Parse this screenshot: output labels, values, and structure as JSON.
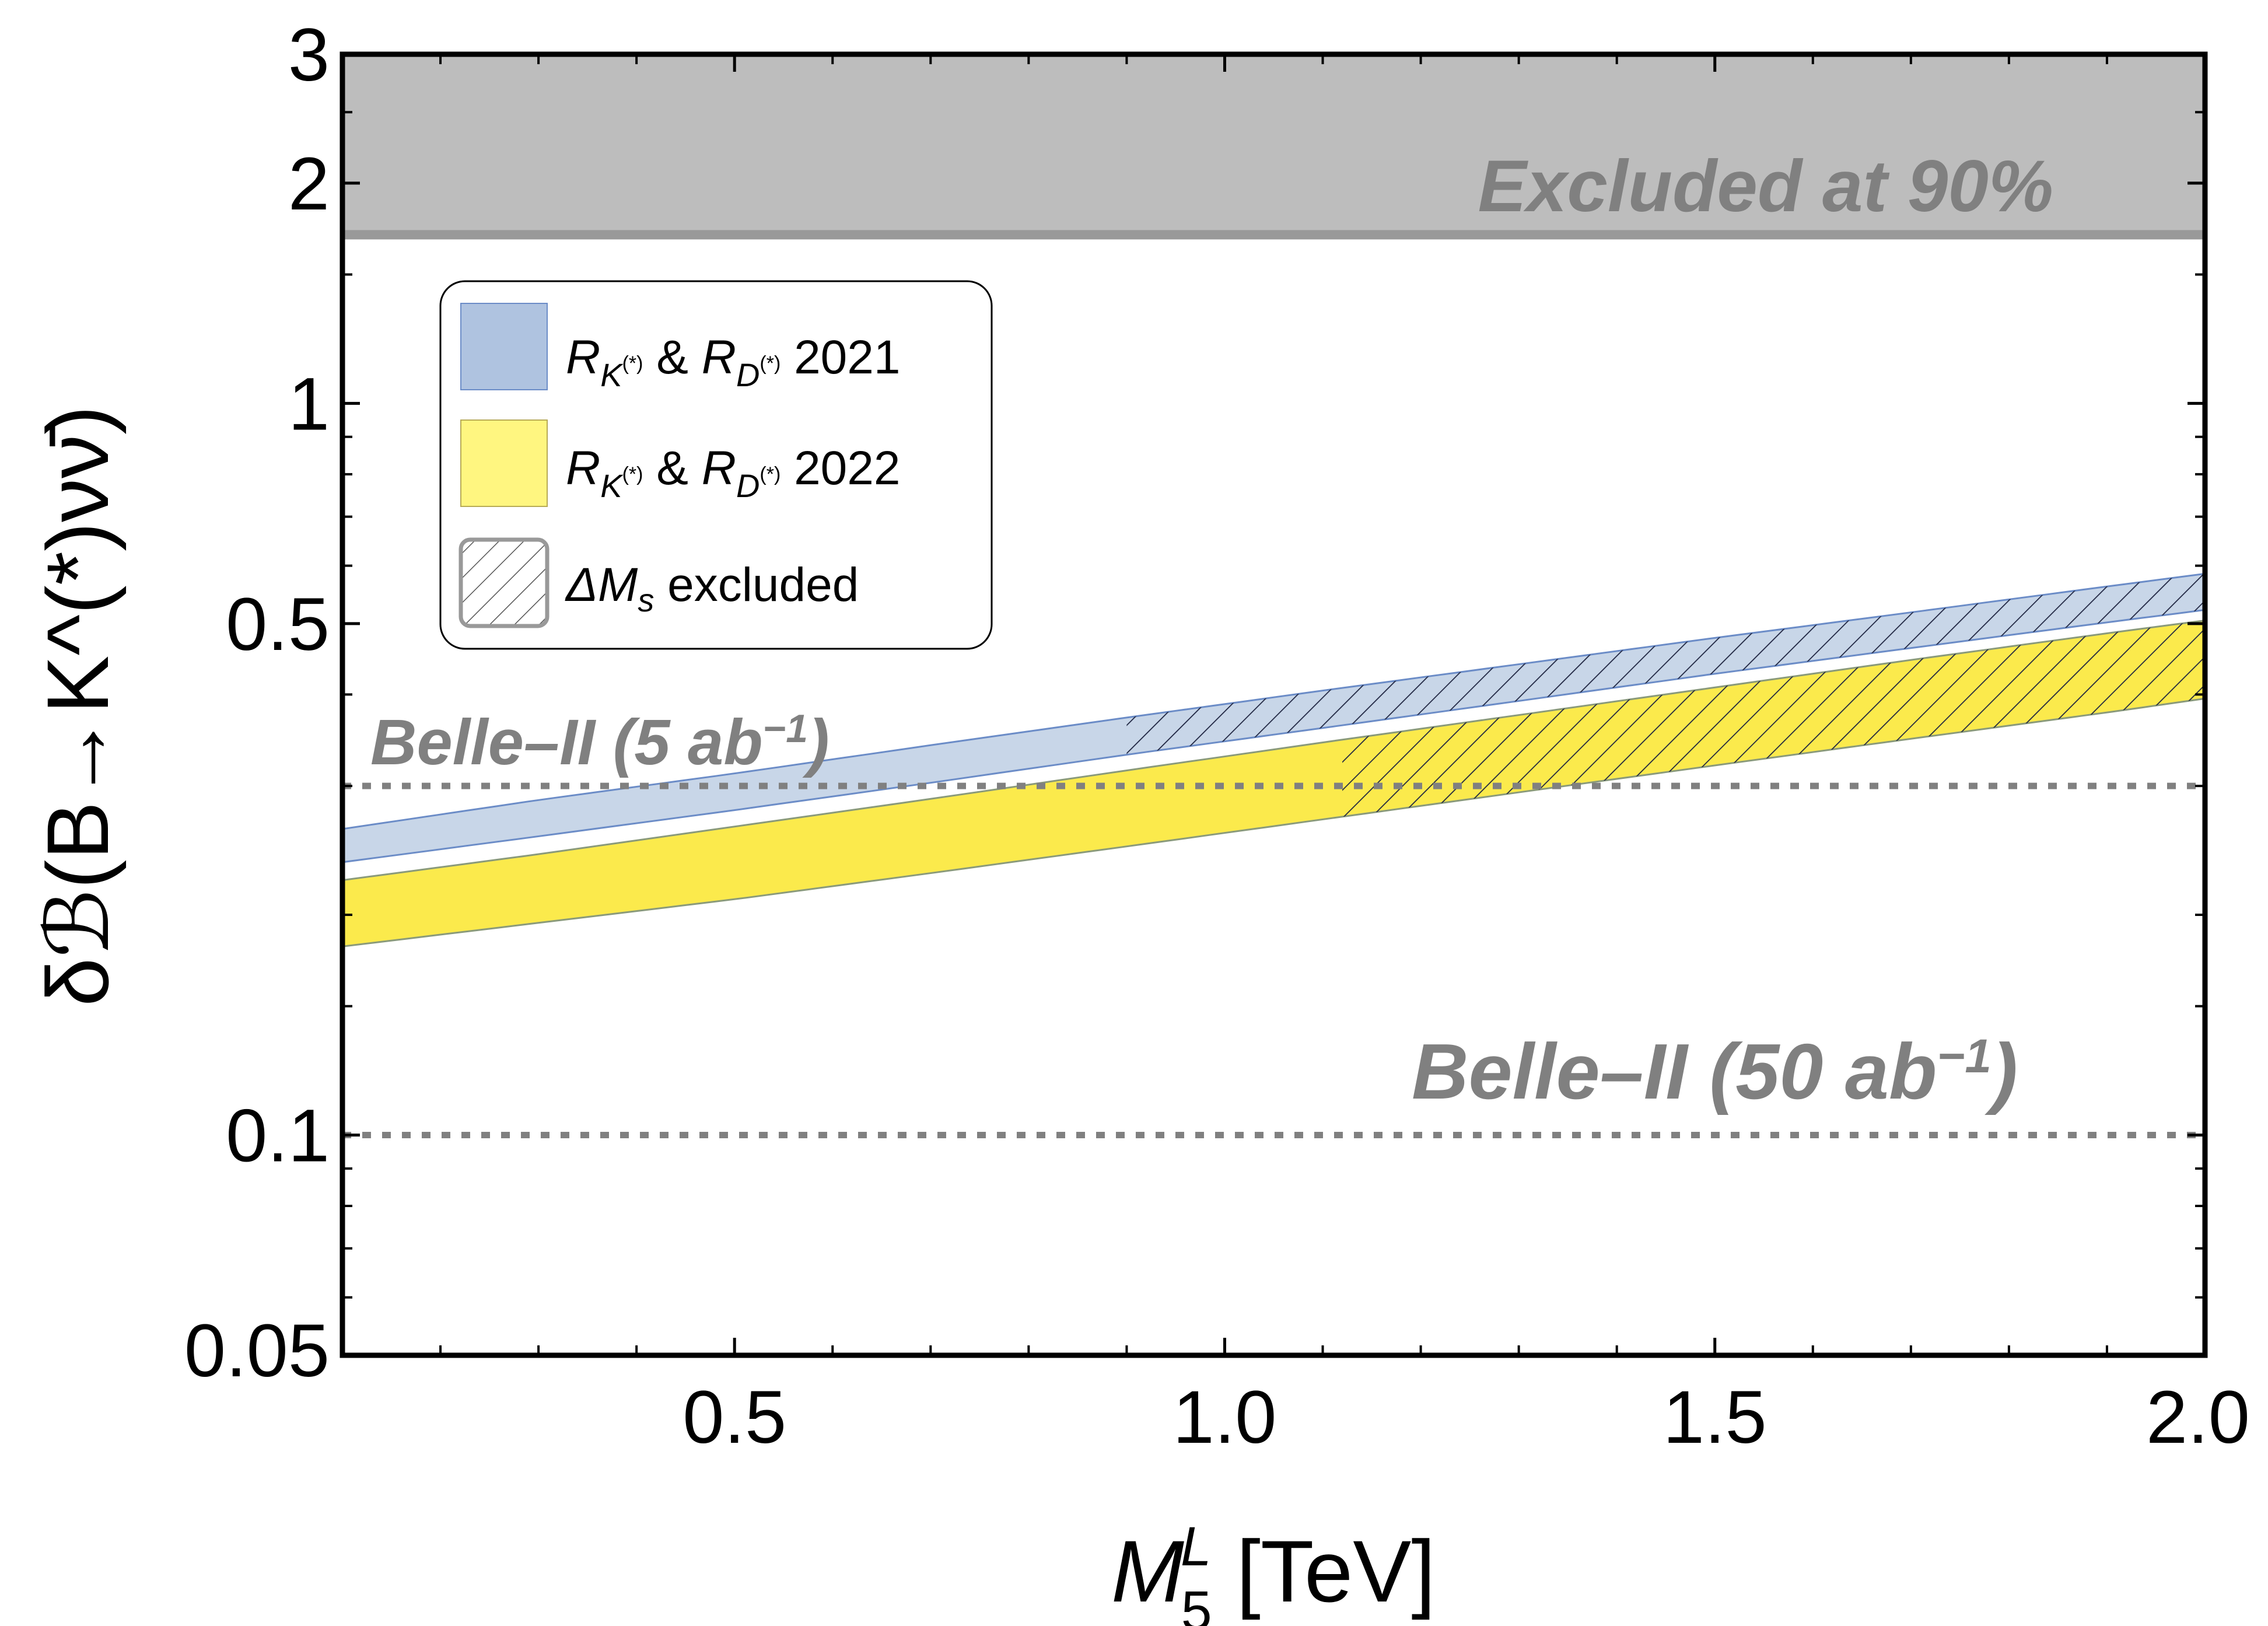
{
  "chart_data": {
    "type": "area",
    "x_scale": "linear",
    "y_scale": "log",
    "xlim": [
      0.1,
      2.0
    ],
    "ylim": [
      0.05,
      3
    ],
    "x_ticks": [
      {
        "value": 0.5,
        "label": "0.5"
      },
      {
        "value": 1.0,
        "label": "1.0"
      },
      {
        "value": 1.5,
        "label": "1.5"
      },
      {
        "value": 2.0,
        "label": "2.0"
      }
    ],
    "x_minor_ticks": [
      0.2,
      0.3,
      0.4,
      0.6,
      0.7,
      0.8,
      0.9,
      1.1,
      1.2,
      1.3,
      1.4,
      1.6,
      1.7,
      1.8,
      1.9
    ],
    "y_ticks": [
      {
        "value": 0.05,
        "label": "0.05"
      },
      {
        "value": 0.1,
        "label": "0.1"
      },
      {
        "value": 0.5,
        "label": "0.5"
      },
      {
        "value": 1,
        "label": "1"
      },
      {
        "value": 2,
        "label": "2"
      },
      {
        "value": 3,
        "label": "3"
      }
    ],
    "y_minor_ticks": [
      0.06,
      0.07,
      0.08,
      0.09,
      0.15,
      0.2,
      0.3,
      0.4,
      0.6,
      0.7,
      0.8,
      0.9,
      1.5,
      2.5
    ],
    "xlabel": {
      "main": "M",
      "sup": "L",
      "sub": "5",
      "unit": " [TeV]"
    },
    "ylabel": "δℬ(B→K^(*)νν̄)",
    "series": [
      {
        "name": "R_K(*) & R_D(*) 2021",
        "x": [
          0.1,
          0.3,
          0.5,
          0.7,
          0.9,
          1.1,
          1.3,
          1.5,
          1.7,
          1.9,
          2.0
        ],
        "upper": [
          0.262,
          0.287,
          0.312,
          0.341,
          0.372,
          0.405,
          0.44,
          0.478,
          0.518,
          0.562,
          0.585
        ],
        "lower": [
          0.236,
          0.256,
          0.278,
          0.303,
          0.331,
          0.36,
          0.392,
          0.427,
          0.463,
          0.502,
          0.522
        ],
        "fill": "#c8d6e8",
        "legend_fill": "#afc3e0",
        "edge": "#6b8cc7",
        "hatch_x": [
          0.9,
          2.0
        ]
      },
      {
        "name": "R_K(*) & R_D(*) 2022",
        "x": [
          0.1,
          0.3,
          0.5,
          0.7,
          0.9,
          1.1,
          1.3,
          1.5,
          1.7,
          1.9,
          2.0
        ],
        "upper": [
          0.223,
          0.242,
          0.264,
          0.288,
          0.315,
          0.344,
          0.375,
          0.409,
          0.446,
          0.485,
          0.505
        ],
        "lower": [
          0.181,
          0.195,
          0.21,
          0.228,
          0.248,
          0.27,
          0.294,
          0.32,
          0.348,
          0.378,
          0.395
        ],
        "fill": "#fbea4c",
        "legend_fill": "#fff680",
        "edge": "#8a9a7a",
        "hatch_x": [
          1.12,
          2.0
        ]
      }
    ],
    "excluded_region": {
      "y_from": 1.7,
      "y_to": 3,
      "label": "Excluded at 90%",
      "fill": "#bdbdbd",
      "edge": "#999999"
    },
    "reference_lines": [
      {
        "y": 0.3,
        "label": "Belle–II (5 ab",
        "exp": "−1",
        "close": ")",
        "style": "dotted",
        "color": "#808080"
      },
      {
        "y": 0.1,
        "label": "Belle–II (50 ab",
        "exp": "−1",
        "close": ")",
        "style": "dotted",
        "color": "#808080"
      }
    ],
    "legend": {
      "placement": "upper-left",
      "entries": [
        {
          "sym1": "R",
          "sub1": "K",
          "supsub1": "(*)",
          "amp": " & ",
          "sym2": "R",
          "sub2": "D",
          "supsub2": "(*)",
          "tail": " 2021"
        },
        {
          "sym1": "R",
          "sub1": "K",
          "supsub1": "(*)",
          "amp": " & ",
          "sym2": "R",
          "sub2": "D",
          "supsub2": "(*)",
          "tail": " 2022"
        },
        {
          "sym1": "ΔM",
          "sub1": "s",
          "supsub1": "",
          "amp": "",
          "sym2": "",
          "sub2": "",
          "supsub2": "",
          "tail": " excluded"
        }
      ]
    }
  }
}
